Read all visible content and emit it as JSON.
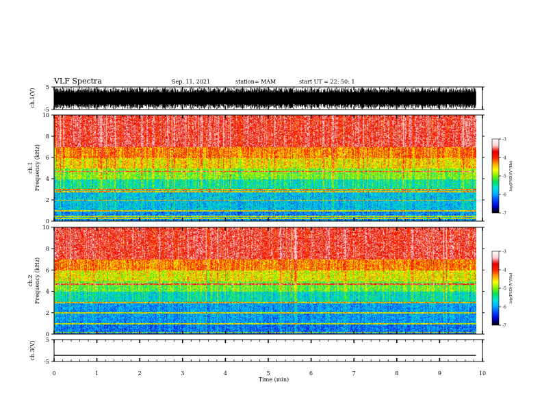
{
  "header": {
    "title": "VLF Spectra",
    "date": "Sep. 11, 2021",
    "station": "station= MAM",
    "start": "start  UT =   22: 50: 1"
  },
  "colors": {
    "waveform": "#000000",
    "axis": "#000000",
    "colormap": [
      "#000000",
      "#0000c8",
      "#0040ff",
      "#00a8ff",
      "#00e0e0",
      "#00e060",
      "#80f000",
      "#ffff00",
      "#ffa000",
      "#ff2000",
      "#e00000",
      "#ffd0d0",
      "#ffffff"
    ]
  },
  "chart_data": [
    {
      "type": "line",
      "name": "ch1-waveform",
      "ylabel": "ch.1(V)",
      "ylim": [
        -5,
        5
      ],
      "ytick_labels": [
        "5",
        "-5"
      ],
      "xlim": [
        0,
        10
      ],
      "description_visible": "dense broadband waveform filling approximately -4 to +4 V"
    },
    {
      "type": "heatmap",
      "name": "ch1-spectrogram",
      "ylabel": [
        "ch.1",
        "Frequency (kHz)"
      ],
      "ylim": [
        0,
        10
      ],
      "ytick_labels": [
        "0",
        "2",
        "4",
        "6",
        "8",
        "10"
      ],
      "xlim": [
        0,
        9.85
      ],
      "colorbar": {
        "label": "log(PSD)(V²/Hz)",
        "range": [
          -7,
          -3
        ],
        "tick_labels": [
          "-3",
          "-4",
          "-5",
          "-6",
          "-7"
        ]
      },
      "dominant_levels_by_frequency_khz": {
        "0-1": -6.3,
        "1-3": -6.0,
        "3-4": -5.6,
        "4-5": -5.0,
        "5-6": -4.5,
        "6-7": -4.1,
        "7-10": -3.4
      },
      "tone_lines_khz": [
        0.3,
        0.5,
        1.0,
        2.0,
        2.8,
        3.0,
        4.7
      ]
    },
    {
      "type": "heatmap",
      "name": "ch2-spectrogram",
      "ylabel": [
        "ch.2",
        "Frequency (kHz)"
      ],
      "ylim": [
        0,
        10
      ],
      "ytick_labels": [
        "0",
        "2",
        "4",
        "6",
        "8",
        "10"
      ],
      "xlim": [
        0,
        9.85
      ],
      "colorbar": {
        "label": "log(PSD)(V²/Hz)",
        "range": [
          -7,
          -3
        ],
        "tick_labels": [
          "-3",
          "-4",
          "-5",
          "-6",
          "-7"
        ]
      },
      "dominant_levels_by_frequency_khz": {
        "0-1": -6.4,
        "1-3": -6.2,
        "3-4": -5.7,
        "4-5": -5.1,
        "5-6": -4.6,
        "6-7": -4.1,
        "7-10": -3.4
      },
      "tone_lines_khz": [
        0.2,
        1.0,
        2.0,
        3.0,
        4.7
      ]
    },
    {
      "type": "line",
      "name": "ch3-waveform",
      "ylabel": "ch.3(V)",
      "ylim": [
        -5,
        5
      ],
      "ytick_labels": [
        "5",
        "-5"
      ],
      "x": [
        0,
        9.85
      ],
      "y": [
        -2.2,
        -2.2
      ]
    }
  ],
  "xaxis": {
    "label": "Time  (min)",
    "range": [
      0,
      10
    ],
    "tick_labels": [
      "0",
      "1",
      "2",
      "3",
      "4",
      "5",
      "6",
      "7",
      "8",
      "9",
      "10"
    ]
  }
}
